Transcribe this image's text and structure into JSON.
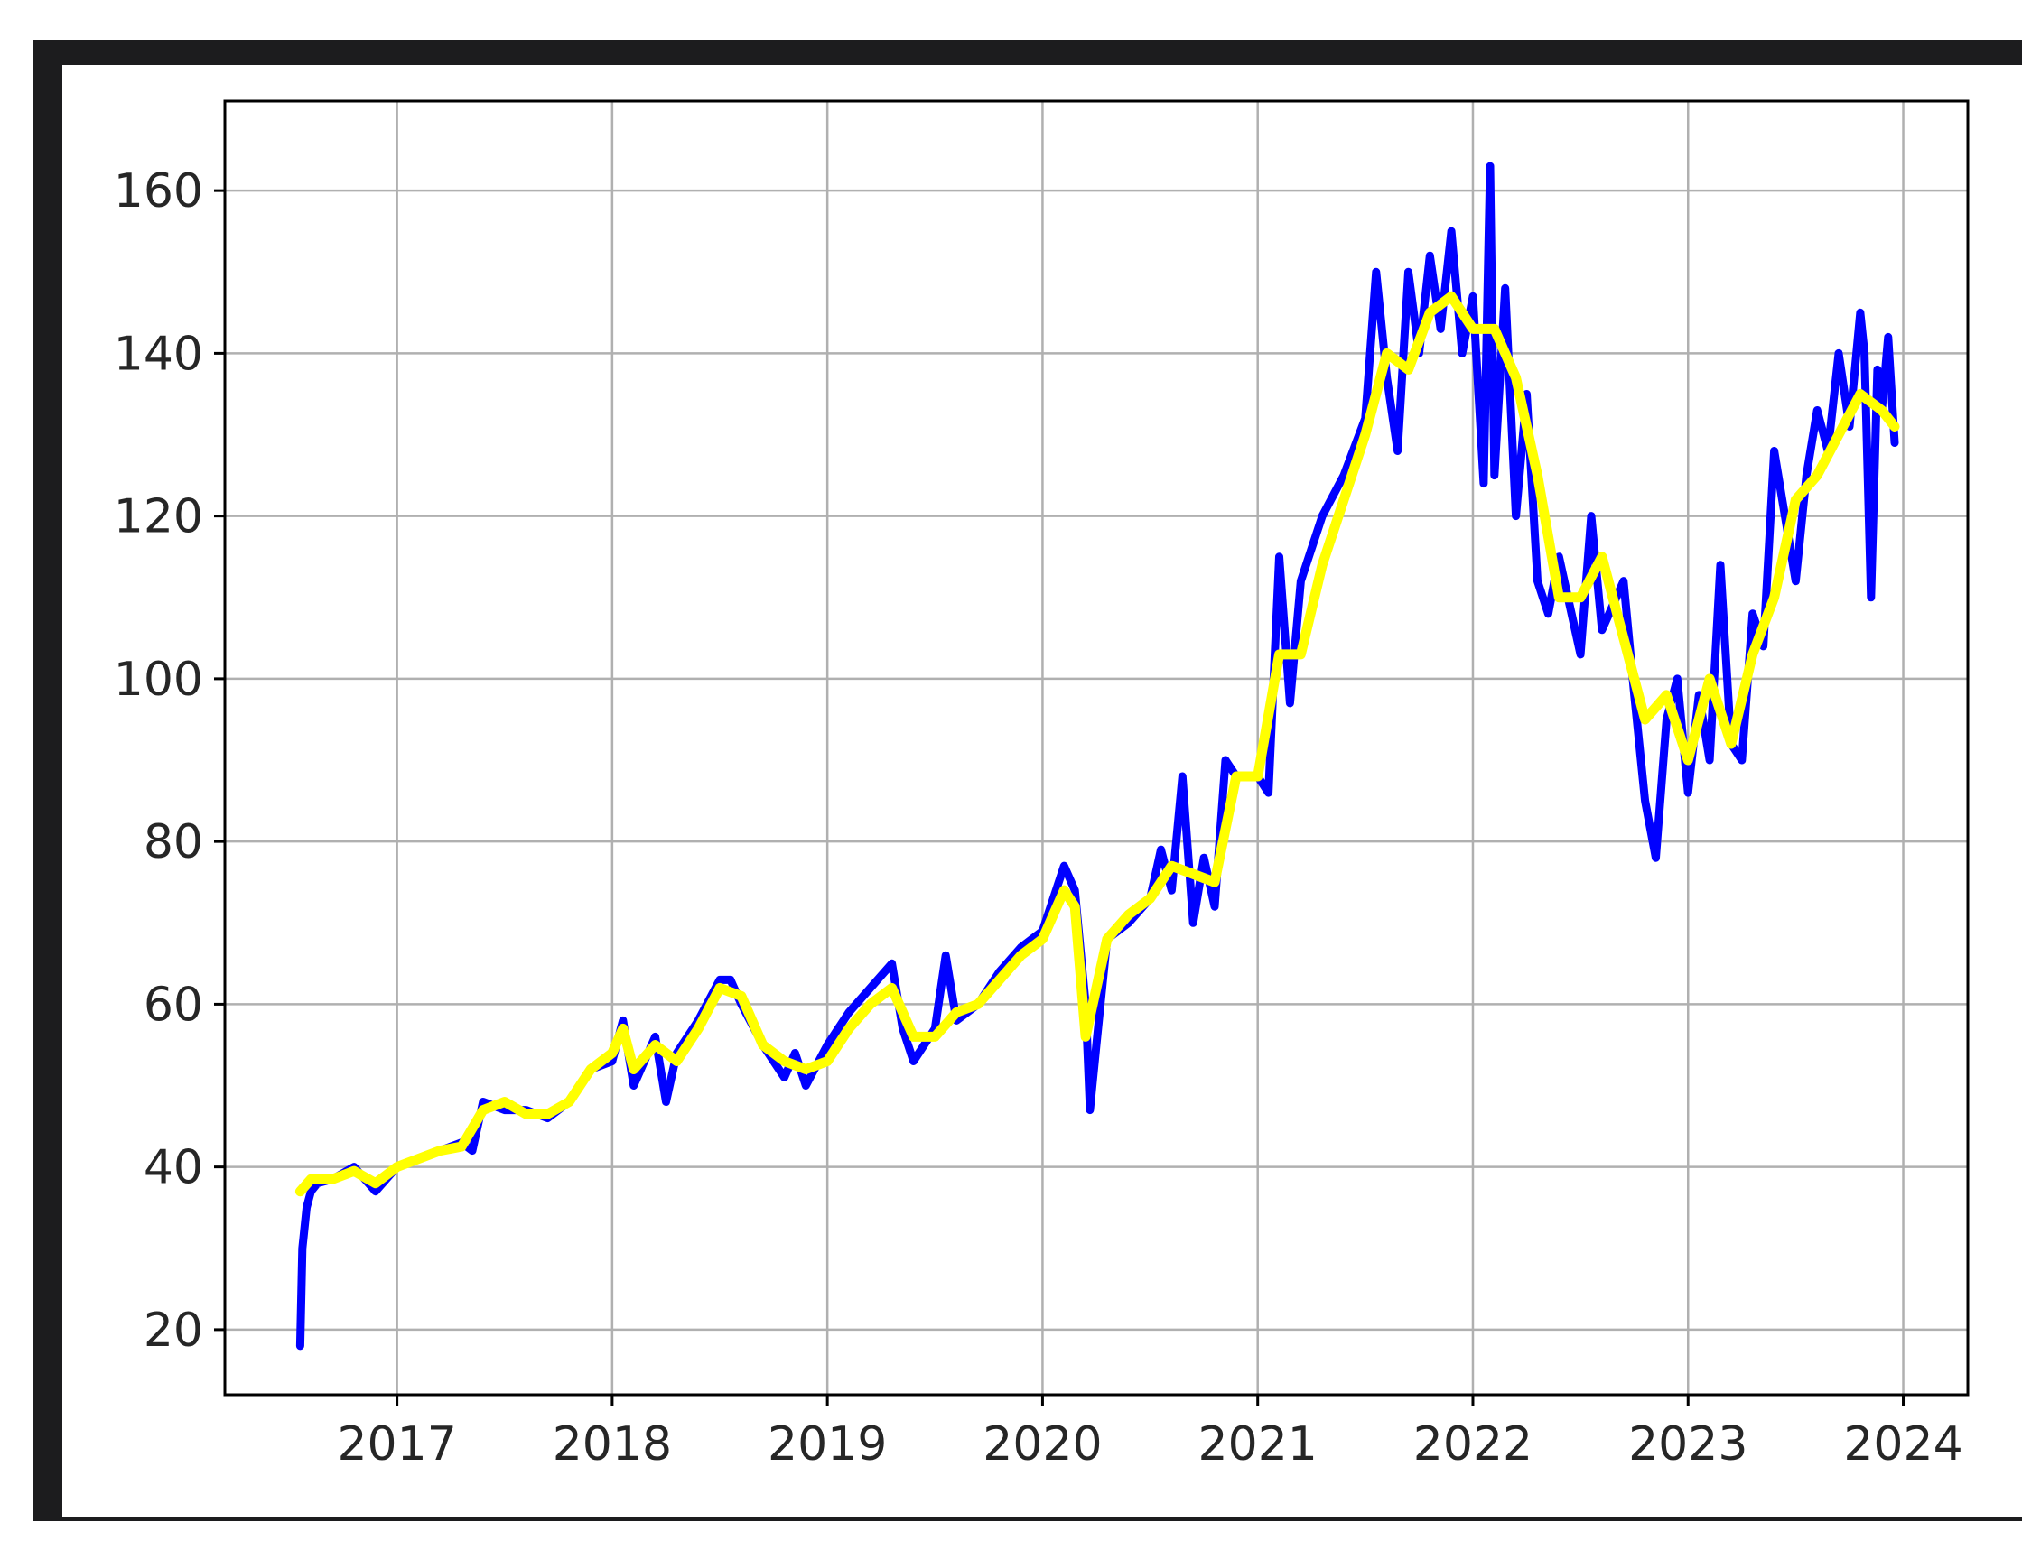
{
  "chart_data": {
    "type": "line",
    "title": "",
    "xlabel": "",
    "ylabel": "",
    "xlim": [
      2016.2,
      2024.3
    ],
    "ylim": [
      12,
      171
    ],
    "x_ticks": [
      2017,
      2018,
      2019,
      2020,
      2021,
      2022,
      2023,
      2024
    ],
    "x_tick_labels": [
      "2017",
      "2018",
      "2019",
      "2020",
      "2021",
      "2022",
      "2023",
      "2024"
    ],
    "y_ticks": [
      20,
      40,
      60,
      80,
      100,
      120,
      140,
      160
    ],
    "y_tick_labels": [
      "20",
      "40",
      "60",
      "80",
      "100",
      "120",
      "140",
      "160"
    ],
    "grid": true,
    "legend": "none",
    "series": [
      {
        "color": "#0000ff",
        "x": [
          2016.55,
          2016.56,
          2016.58,
          2016.6,
          2016.63,
          2016.7,
          2016.8,
          2016.9,
          2017.0,
          2017.1,
          2017.2,
          2017.3,
          2017.35,
          2017.4,
          2017.5,
          2017.6,
          2017.7,
          2017.8,
          2017.9,
          2018.0,
          2018.05,
          2018.1,
          2018.2,
          2018.25,
          2018.3,
          2018.4,
          2018.5,
          2018.55,
          2018.6,
          2018.7,
          2018.8,
          2018.85,
          2018.9,
          2019.0,
          2019.1,
          2019.2,
          2019.3,
          2019.35,
          2019.4,
          2019.5,
          2019.55,
          2019.6,
          2019.7,
          2019.8,
          2019.9,
          2020.0,
          2020.1,
          2020.15,
          2020.2,
          2020.22,
          2020.25,
          2020.3,
          2020.4,
          2020.5,
          2020.55,
          2020.6,
          2020.65,
          2020.7,
          2020.75,
          2020.8,
          2020.85,
          2020.9,
          2021.0,
          2021.05,
          2021.1,
          2021.15,
          2021.2,
          2021.3,
          2021.4,
          2021.5,
          2021.55,
          2021.6,
          2021.65,
          2021.7,
          2021.75,
          2021.8,
          2021.85,
          2021.9,
          2021.95,
          2022.0,
          2022.05,
          2022.08,
          2022.1,
          2022.15,
          2022.2,
          2022.25,
          2022.3,
          2022.35,
          2022.4,
          2022.5,
          2022.55,
          2022.6,
          2022.7,
          2022.75,
          2022.8,
          2022.85,
          2022.9,
          2022.95,
          2023.0,
          2023.05,
          2023.1,
          2023.15,
          2023.2,
          2023.25,
          2023.3,
          2023.35,
          2023.4,
          2023.45,
          2023.5,
          2023.55,
          2023.6,
          2023.65,
          2023.7,
          2023.75,
          2023.8,
          2023.82,
          2023.85,
          2023.88,
          2023.9,
          2023.93,
          2023.96
        ],
        "y": [
          18,
          30,
          35,
          37,
          38,
          38.5,
          40,
          37,
          40,
          41,
          42,
          43,
          42,
          48,
          47,
          47,
          46,
          48,
          52,
          53,
          58,
          50,
          56,
          48,
          54,
          58,
          63,
          63,
          60,
          55,
          51,
          54,
          50,
          55,
          59,
          62,
          65,
          57,
          53,
          57,
          66,
          58,
          60,
          64,
          67,
          69,
          77,
          74,
          60,
          47,
          55,
          68,
          70,
          73,
          79,
          74,
          88,
          70,
          78,
          72,
          90,
          88,
          88,
          86,
          115,
          97,
          112,
          120,
          125,
          132,
          150,
          137,
          128,
          150,
          140,
          152,
          143,
          155,
          140,
          147,
          124,
          163,
          125,
          148,
          120,
          135,
          112,
          108,
          115,
          103,
          120,
          106,
          112,
          98,
          85,
          78,
          95,
          100,
          86,
          98,
          90,
          114,
          92,
          90,
          108,
          104,
          128,
          120,
          112,
          125,
          133,
          128,
          140,
          131,
          145,
          140,
          110,
          138,
          133,
          142,
          129
        ]
      },
      {
        "color": "#ffff00",
        "x": [
          2016.55,
          2016.6,
          2016.7,
          2016.8,
          2016.9,
          2017.0,
          2017.1,
          2017.2,
          2017.3,
          2017.4,
          2017.5,
          2017.6,
          2017.7,
          2017.8,
          2017.9,
          2018.0,
          2018.05,
          2018.1,
          2018.2,
          2018.3,
          2018.4,
          2018.5,
          2018.6,
          2018.7,
          2018.8,
          2018.9,
          2019.0,
          2019.1,
          2019.2,
          2019.3,
          2019.4,
          2019.5,
          2019.6,
          2019.7,
          2019.8,
          2019.9,
          2020.0,
          2020.1,
          2020.15,
          2020.2,
          2020.25,
          2020.3,
          2020.4,
          2020.5,
          2020.6,
          2020.7,
          2020.8,
          2020.9,
          2021.0,
          2021.1,
          2021.2,
          2021.3,
          2021.4,
          2021.5,
          2021.6,
          2021.7,
          2021.8,
          2021.9,
          2022.0,
          2022.1,
          2022.2,
          2022.3,
          2022.4,
          2022.5,
          2022.6,
          2022.7,
          2022.8,
          2022.9,
          2023.0,
          2023.1,
          2023.2,
          2023.3,
          2023.4,
          2023.5,
          2023.6,
          2023.7,
          2023.8,
          2023.9,
          2023.96
        ],
        "y": [
          37,
          38.5,
          38.5,
          39.5,
          38,
          40,
          41,
          42,
          42.5,
          47,
          48,
          46.5,
          46.5,
          48,
          52,
          54,
          57,
          52,
          55,
          53,
          57,
          62,
          61,
          55,
          53,
          52,
          53,
          57,
          60,
          62,
          56,
          56,
          59,
          60,
          63,
          66,
          68,
          74,
          72,
          56,
          62,
          68,
          71,
          73,
          77,
          76,
          75,
          88,
          88,
          103,
          103,
          114,
          122,
          130,
          140,
          138,
          145,
          147,
          143,
          143,
          137,
          125,
          110,
          110,
          115,
          105,
          95,
          98,
          90,
          100,
          92,
          103,
          110,
          122,
          125,
          130,
          135,
          133,
          131
        ]
      }
    ]
  }
}
